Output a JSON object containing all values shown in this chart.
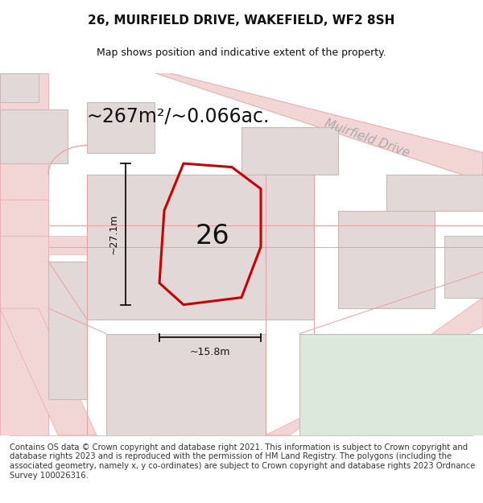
{
  "title": "26, MUIRFIELD DRIVE, WAKEFIELD, WF2 8SH",
  "subtitle": "Map shows position and indicative extent of the property.",
  "area_text": "~267m²/~0.066ac.",
  "dim_height": "~27.1m",
  "dim_width": "~15.8m",
  "label_number": "26",
  "street_label": "Muirfield Drive",
  "footer": "Contains OS data © Crown copyright and database right 2021. This information is subject to Crown copyright and database rights 2023 and is reproduced with the permission of HM Land Registry. The polygons (including the associated geometry, namely x, y co-ordinates) are subject to Crown copyright and database rights 2023 Ordnance Survey 100026316.",
  "bg_color": "#f7f3f3",
  "road_color": "#f2d5d5",
  "road_edge": "#e8a8a8",
  "building_color": "#e2d8d8",
  "building_edge": "#c8b8b8",
  "green_color": "#dde8dd",
  "property_edge": "#cc0000",
  "dim_color": "#111111",
  "street_label_color": "#aaaaaa",
  "title_fontsize": 11,
  "subtitle_fontsize": 9,
  "area_fontsize": 17,
  "label_fontsize": 24,
  "street_label_fontsize": 11,
  "footer_fontsize": 7.2,
  "dim_fontsize": 9
}
